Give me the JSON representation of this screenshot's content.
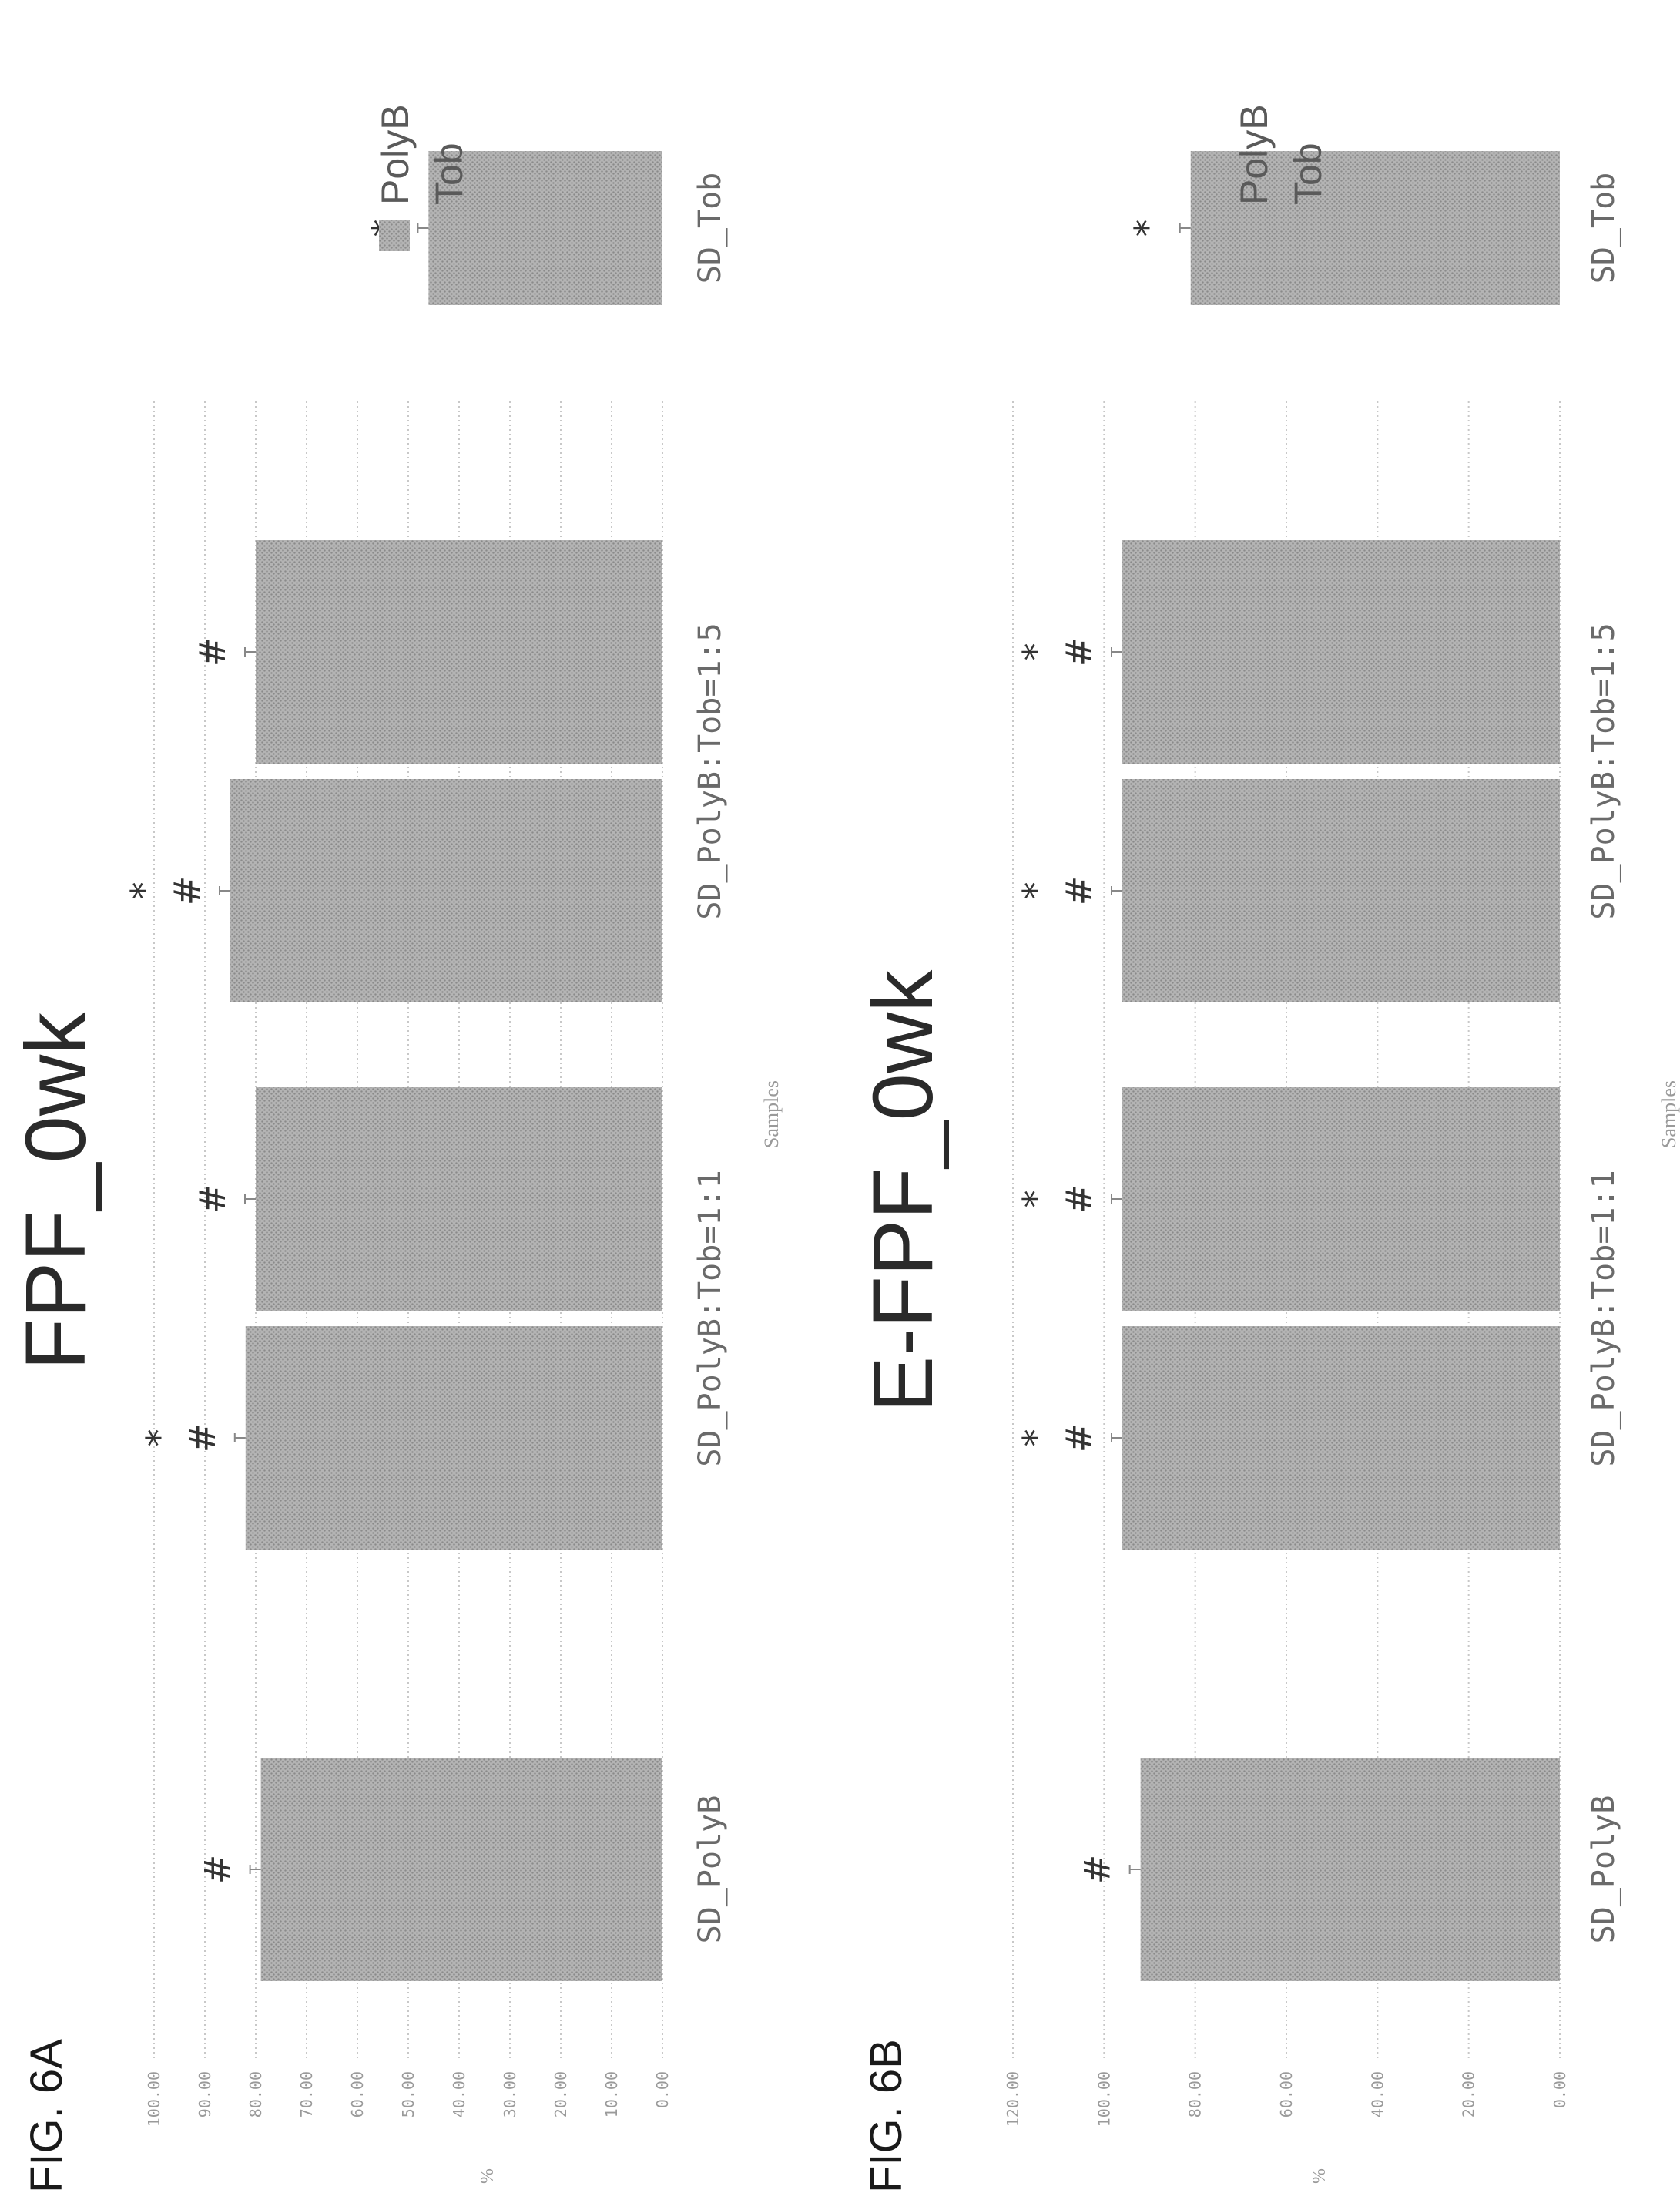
{
  "colors": {
    "bar_fill": "#a7a7a7",
    "pattern_dot": "#8a8a8a",
    "grid": "#c8c8c8"
  },
  "chart_data": [
    {
      "figure_label": "FIG. 6A",
      "type": "bar",
      "title": "FPF_0wk",
      "xlabel": "Samples",
      "ylabel": "%",
      "ylim": [
        0,
        100
      ],
      "yticks": [
        "0.00",
        "10.00",
        "20.00",
        "30.00",
        "40.00",
        "50.00",
        "60.00",
        "70.00",
        "80.00",
        "90.00",
        "100.00"
      ],
      "grid": true,
      "legend_position": "right",
      "categories": [
        "SD_PolyB",
        "SD_PolyB:Tob=1:1",
        "SD_PolyB:Tob=1:5",
        "SD_Tob"
      ],
      "series": [
        {
          "name": "PolyB",
          "values": [
            79,
            82,
            85,
            null
          ],
          "annotations": [
            "#",
            "* #",
            "* #",
            ""
          ]
        },
        {
          "name": "Tob",
          "values": [
            null,
            80,
            80,
            46
          ],
          "annotations": [
            "",
            "#",
            "#",
            "*"
          ]
        }
      ]
    },
    {
      "figure_label": "FIG. 6B",
      "type": "bar",
      "title": "E-FPF_0wk",
      "xlabel": "Samples",
      "ylabel": "%",
      "ylim": [
        0,
        120
      ],
      "yticks": [
        "0.00",
        "20.00",
        "40.00",
        "60.00",
        "80.00",
        "100.00",
        "120.00"
      ],
      "grid": true,
      "legend_position": "right",
      "categories": [
        "SD_PolyB",
        "SD_PolyB:Tob=1:1",
        "SD_PolyB:Tob=1:5",
        "SD_Tob"
      ],
      "series": [
        {
          "name": "PolyB",
          "values": [
            92,
            96,
            96,
            null
          ],
          "annotations": [
            "#",
            "* #",
            "* #",
            ""
          ]
        },
        {
          "name": "Tob",
          "values": [
            null,
            96,
            96,
            81
          ],
          "annotations": [
            "",
            "* #",
            "* #",
            "*"
          ]
        }
      ]
    }
  ]
}
